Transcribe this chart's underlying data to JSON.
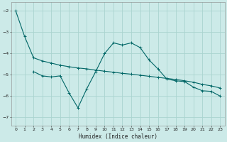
{
  "xlabel": "Humidex (Indice chaleur)",
  "bg_color": "#cceae8",
  "grid_color": "#aad4d0",
  "line_color": "#006666",
  "ylim": [
    -7.4,
    -1.6
  ],
  "xlim": [
    -0.5,
    23.5
  ],
  "yticks": [
    -7,
    -6,
    -5,
    -4,
    -3,
    -2
  ],
  "xticks": [
    0,
    1,
    2,
    3,
    4,
    5,
    6,
    7,
    8,
    9,
    10,
    11,
    12,
    13,
    14,
    15,
    16,
    17,
    18,
    19,
    20,
    21,
    22,
    23
  ],
  "line1_x": [
    0,
    1,
    2,
    3,
    4,
    5,
    6,
    7,
    8,
    9,
    10,
    11,
    12,
    13,
    14,
    15,
    16,
    17,
    18,
    19,
    20,
    21,
    22,
    23
  ],
  "line1_y": [
    -2.0,
    -3.2,
    -4.2,
    -4.35,
    -4.45,
    -4.55,
    -4.62,
    -4.68,
    -4.72,
    -4.78,
    -4.83,
    -4.88,
    -4.93,
    -4.97,
    -5.02,
    -5.07,
    -5.12,
    -5.17,
    -5.22,
    -5.28,
    -5.35,
    -5.45,
    -5.52,
    -5.62
  ],
  "line2_x": [
    2,
    3,
    4,
    5,
    6,
    7,
    8,
    9,
    10,
    11,
    12,
    13,
    14,
    15,
    16,
    17,
    18,
    19,
    20,
    21,
    22,
    23
  ],
  "line2_y": [
    -4.85,
    -5.05,
    -5.1,
    -5.05,
    -5.85,
    -6.55,
    -5.65,
    -4.85,
    -4.0,
    -3.5,
    -3.6,
    -3.5,
    -3.72,
    -4.3,
    -4.72,
    -5.2,
    -5.28,
    -5.32,
    -5.58,
    -5.75,
    -5.78,
    -6.0
  ]
}
